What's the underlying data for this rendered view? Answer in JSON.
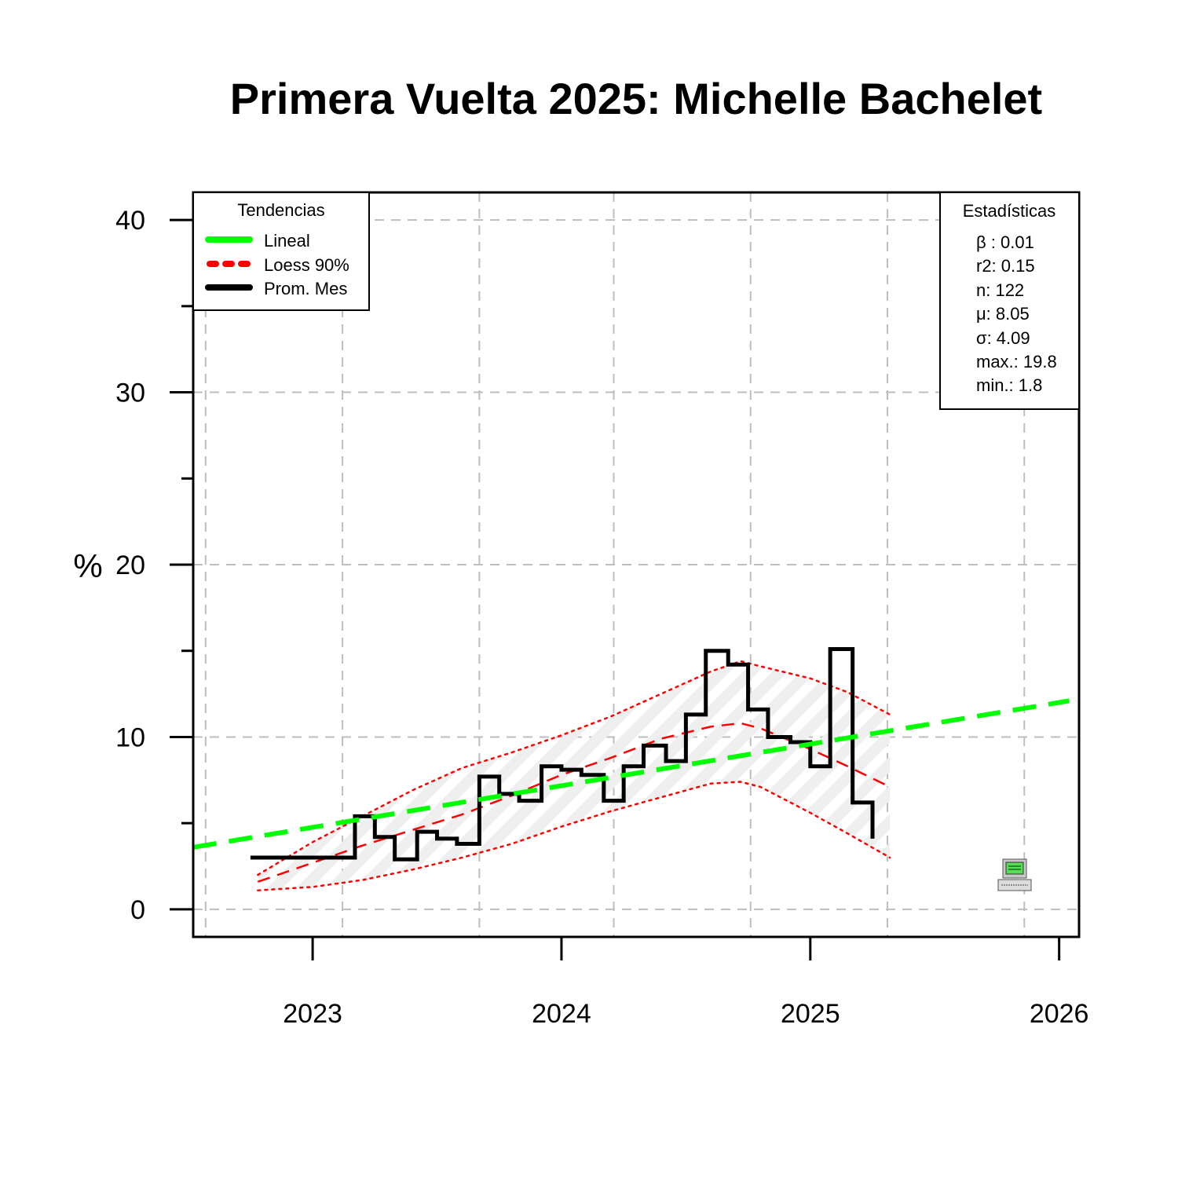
{
  "chart_data": {
    "type": "line",
    "title": "Primera Vuelta 2025: Michelle Bachelet",
    "ylabel": "%",
    "xlabel": "",
    "xlim": [
      2022.52,
      2026.08
    ],
    "ylim": [
      -1.6,
      41.6
    ],
    "y_ticks": [
      0,
      10,
      20,
      30,
      40
    ],
    "y_minor_ticks": [
      5,
      15,
      25,
      35
    ],
    "x_ticks": [
      {
        "value": 2023,
        "label": "2023"
      },
      {
        "value": 2024,
        "label": "2024"
      },
      {
        "value": 2025,
        "label": "2025"
      },
      {
        "value": 2026,
        "label": "2026"
      }
    ],
    "x_grid": [
      2022.57,
      2023.12,
      2023.67,
      2024.21,
      2024.76,
      2025.31,
      2025.86
    ],
    "y_grid": [
      0,
      10,
      20,
      30,
      40
    ],
    "grid": true,
    "colors": {
      "linear": "#00ff00",
      "loess": "#ff0000",
      "monthly": "#000000",
      "grid": "#bebebe",
      "band_hatch": "#e8e8e8"
    },
    "series": [
      {
        "name": "Prom. Mes",
        "style": "step",
        "x": [
          2022.75,
          2022.92,
          2023.17,
          2023.25,
          2023.33,
          2023.42,
          2023.5,
          2023.58,
          2023.67,
          2023.75,
          2023.83,
          2023.92,
          2024.0,
          2024.08,
          2024.17,
          2024.25,
          2024.33,
          2024.42,
          2024.5,
          2024.58,
          2024.67,
          2024.75,
          2024.83,
          2024.92,
          2025.0,
          2025.08,
          2025.17,
          2025.25
        ],
        "y": [
          3.0,
          3.0,
          5.4,
          4.2,
          2.9,
          4.5,
          4.1,
          3.8,
          7.7,
          6.7,
          6.3,
          8.3,
          8.1,
          7.8,
          6.3,
          8.3,
          9.5,
          8.6,
          11.3,
          15.0,
          14.2,
          11.6,
          10.0,
          9.7,
          8.3,
          15.1,
          6.2,
          4.1
        ]
      },
      {
        "name": "Lineal",
        "style": "dashed",
        "x": [
          2022.52,
          2026.04
        ],
        "y": [
          3.6,
          12.1
        ]
      },
      {
        "name": "Loess 90%",
        "style": "dashed",
        "x": [
          2022.78,
          2023.0,
          2023.2,
          2023.4,
          2023.6,
          2023.8,
          2024.0,
          2024.2,
          2024.4,
          2024.6,
          2024.72,
          2024.8,
          2025.0,
          2025.15,
          2025.32
        ],
        "y": [
          1.6,
          2.7,
          3.7,
          4.6,
          5.5,
          6.6,
          7.8,
          8.8,
          9.9,
          10.6,
          10.8,
          10.5,
          9.3,
          8.3,
          7.1
        ],
        "upper": [
          2.0,
          3.9,
          5.4,
          6.9,
          8.2,
          9.1,
          10.1,
          11.2,
          12.5,
          13.8,
          14.4,
          14.1,
          13.4,
          12.6,
          11.3
        ],
        "lower": [
          1.1,
          1.3,
          1.7,
          2.3,
          3.0,
          3.8,
          4.8,
          5.7,
          6.5,
          7.3,
          7.4,
          7.1,
          5.6,
          4.4,
          3.0
        ]
      }
    ],
    "legend": {
      "title": "Tendencias",
      "position": "top-left",
      "entries": [
        "Lineal",
        "Loess 90%",
        "Prom. Mes"
      ]
    },
    "stats_box": {
      "title": "Estadísticas",
      "position": "top-right",
      "lines": [
        "β : 0.01",
        "r2: 0.15",
        "n: 122",
        "μ: 8.05",
        "σ: 4.09",
        "max.: 19.8",
        "min.: 1.8"
      ]
    },
    "watermark_icon": "computer-icon"
  }
}
